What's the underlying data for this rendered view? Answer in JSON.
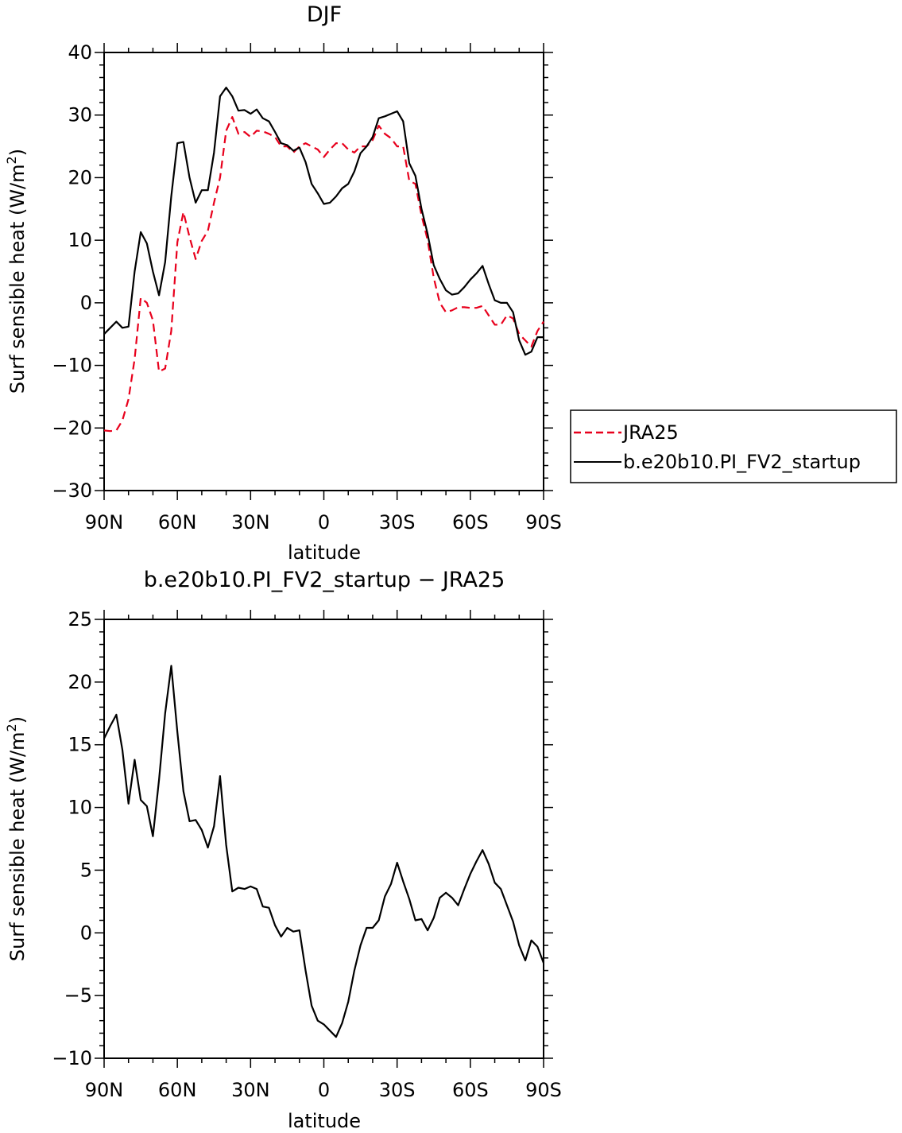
{
  "chart_data": [
    {
      "type": "line",
      "title": "DJF",
      "xlabel": "latitude",
      "ylabel": "Surf sensible heat (W/m²)",
      "ylabel_main": "Surf sensible heat (W/m",
      "ylabel_sup": "2",
      "ylabel_end": ")",
      "xlim": [
        90,
        -90
      ],
      "ylim": [
        -30,
        40
      ],
      "xticks": [
        90,
        60,
        30,
        0,
        -30,
        -60,
        -90
      ],
      "xtick_labels": [
        "90N",
        "60N",
        "30N",
        "0",
        "30S",
        "60S",
        "90S"
      ],
      "yticks": [
        40,
        30,
        20,
        10,
        0,
        -10,
        -20,
        -30
      ],
      "ytick_labels": [
        "40",
        "30",
        "20",
        "10",
        "0",
        "−10",
        "−20",
        "−30"
      ],
      "legend_position": "right",
      "series": [
        {
          "name": "JRA25",
          "color": "#e8001c",
          "dash": "dashed",
          "x": [
            90,
            87.5,
            85,
            82.5,
            80,
            77.5,
            75,
            72.5,
            70,
            67.5,
            65,
            62.5,
            60,
            57.5,
            55,
            52.5,
            50,
            47.5,
            45,
            42.5,
            40,
            37.5,
            35,
            32.5,
            30,
            27.5,
            25,
            22.5,
            20,
            17.5,
            15,
            12.5,
            10,
            7.5,
            5,
            2.5,
            0,
            -2.5,
            -5,
            -7.5,
            -10,
            -12.5,
            -15,
            -17.5,
            -20,
            -22.5,
            -25,
            -27.5,
            -30,
            -32.5,
            -35,
            -37.5,
            -40,
            -42.5,
            -45,
            -47.5,
            -50,
            -52.5,
            -55,
            -57.5,
            -60,
            -62.5,
            -65,
            -67.5,
            -70,
            -72.5,
            -75,
            -77.5,
            -80,
            -82.5,
            -85,
            -87.5,
            -90
          ],
          "y": [
            -20.4,
            -20.5,
            -20.4,
            -18.8,
            -15.4,
            -9.0,
            0.8,
            0.0,
            -2.8,
            -11.0,
            -10.5,
            -4.5,
            9.7,
            14.5,
            10.5,
            7.0,
            9.9,
            11.5,
            16.0,
            20.0,
            27.5,
            29.7,
            27.0,
            27.3,
            26.5,
            27.5,
            27.4,
            27.0,
            26.5,
            25.0,
            25.0,
            24.0,
            25.0,
            25.5,
            25.0,
            24.5,
            23.3,
            24.5,
            25.5,
            25.5,
            24.5,
            24.0,
            25.0,
            25.0,
            26.0,
            28.3,
            27.0,
            26.3,
            25.0,
            25.0,
            19.5,
            19.0,
            14.0,
            10.0,
            4.0,
            0.0,
            -1.5,
            -1.2,
            -0.7,
            -0.7,
            -0.8,
            -0.8,
            -0.5,
            -2.0,
            -3.5,
            -3.5,
            -2.0,
            -2.5,
            -5.0,
            -6.0,
            -7.0,
            -4.5,
            -3.0
          ]
        },
        {
          "name": "b.e20b10.PI_FV2_startup",
          "color": "#000000",
          "dash": "solid",
          "x": [
            90,
            87.5,
            85,
            82.5,
            80,
            77.5,
            75,
            72.5,
            70,
            67.5,
            65,
            62.5,
            60,
            57.5,
            55,
            52.5,
            50,
            47.5,
            45,
            42.5,
            40,
            37.5,
            35,
            32.5,
            30,
            27.5,
            25,
            22.5,
            20,
            17.5,
            15,
            12.5,
            10,
            7.5,
            5,
            2.5,
            0,
            -2.5,
            -5,
            -7.5,
            -10,
            -12.5,
            -15,
            -17.5,
            -20,
            -22.5,
            -25,
            -27.5,
            -30,
            -32.5,
            -35,
            -37.5,
            -40,
            -42.5,
            -45,
            -47.5,
            -50,
            -52.5,
            -55,
            -57.5,
            -60,
            -62.5,
            -65,
            -67.5,
            -70,
            -72.5,
            -75,
            -77.5,
            -80,
            -82.5,
            -85,
            -87.5,
            -90
          ],
          "y": [
            -5.0,
            -4.0,
            -3.0,
            -4.0,
            -3.8,
            5.0,
            11.3,
            9.5,
            5.0,
            1.2,
            6.5,
            17.0,
            25.5,
            25.7,
            20.0,
            16.0,
            18.0,
            18.0,
            24.0,
            33.0,
            34.4,
            33.0,
            30.7,
            30.8,
            30.2,
            30.9,
            29.5,
            29.0,
            27.3,
            25.5,
            25.2,
            24.3,
            24.8,
            22.5,
            19.0,
            17.5,
            15.8,
            16.0,
            17.0,
            18.3,
            19.0,
            21.0,
            23.9,
            25.0,
            26.5,
            29.5,
            29.8,
            30.2,
            30.6,
            29.0,
            22.3,
            20.3,
            15.0,
            11.0,
            6.0,
            3.8,
            2.0,
            1.3,
            1.5,
            2.5,
            3.7,
            4.7,
            5.9,
            3.0,
            0.4,
            0.0,
            0.0,
            -1.5,
            -6.0,
            -8.3,
            -7.8,
            -5.5,
            -5.5
          ]
        }
      ]
    },
    {
      "type": "line",
      "title": "b.e20b10.PI_FV2_startup − JRA25",
      "xlabel": "latitude",
      "ylabel": "Surf sensible heat (W/m²)",
      "ylabel_main": "Surf sensible heat (W/m",
      "ylabel_sup": "2",
      "ylabel_end": ")",
      "xlim": [
        90,
        -90
      ],
      "ylim": [
        -10,
        25
      ],
      "xticks": [
        90,
        60,
        30,
        0,
        -30,
        -60,
        -90
      ],
      "xtick_labels": [
        "90N",
        "60N",
        "30N",
        "0",
        "30S",
        "60S",
        "90S"
      ],
      "yticks": [
        25,
        20,
        15,
        10,
        5,
        0,
        -5,
        -10
      ],
      "ytick_labels": [
        "25",
        "20",
        "15",
        "10",
        "5",
        "0",
        "−5",
        "−10"
      ],
      "series": [
        {
          "color": "#000000",
          "dash": "solid",
          "x": [
            90,
            87.5,
            85,
            82.5,
            80,
            77.5,
            75,
            72.5,
            70,
            67.5,
            65,
            62.5,
            60,
            57.5,
            55,
            52.5,
            50,
            47.5,
            45,
            42.5,
            40,
            37.5,
            35,
            32.5,
            30,
            27.5,
            25,
            22.5,
            20,
            17.5,
            15,
            12.5,
            10,
            7.5,
            5,
            2.5,
            0,
            -2.5,
            -5,
            -7.5,
            -10,
            -12.5,
            -15,
            -17.5,
            -20,
            -22.5,
            -25,
            -27.5,
            -30,
            -32.5,
            -35,
            -37.5,
            -40,
            -42.5,
            -45,
            -47.5,
            -50,
            -52.5,
            -55,
            -57.5,
            -60,
            -62.5,
            -65,
            -67.5,
            -70,
            -72.5,
            -75,
            -77.5,
            -80,
            -82.5,
            -85,
            -87.5,
            -90
          ],
          "y": [
            15.5,
            16.5,
            17.4,
            14.6,
            10.3,
            13.8,
            10.6,
            10.1,
            7.7,
            12.2,
            17.5,
            21.3,
            16.0,
            11.3,
            8.9,
            9.0,
            8.2,
            6.8,
            8.5,
            12.5,
            7.0,
            3.3,
            3.6,
            3.5,
            3.7,
            3.5,
            2.1,
            2.0,
            0.6,
            -0.3,
            0.4,
            0.1,
            0.2,
            -3.0,
            -5.8,
            -7.0,
            -7.3,
            -7.8,
            -8.3,
            -7.2,
            -5.5,
            -3.0,
            -1.0,
            0.4,
            0.4,
            1.0,
            2.9,
            3.9,
            5.6,
            4.1,
            2.7,
            1.0,
            1.1,
            0.2,
            1.2,
            2.8,
            3.2,
            2.8,
            2.2,
            3.5,
            4.7,
            5.7,
            6.6,
            5.5,
            4.0,
            3.5,
            2.2,
            0.9,
            -1.0,
            -2.2,
            -0.6,
            -1.1,
            -2.4
          ]
        }
      ]
    }
  ]
}
